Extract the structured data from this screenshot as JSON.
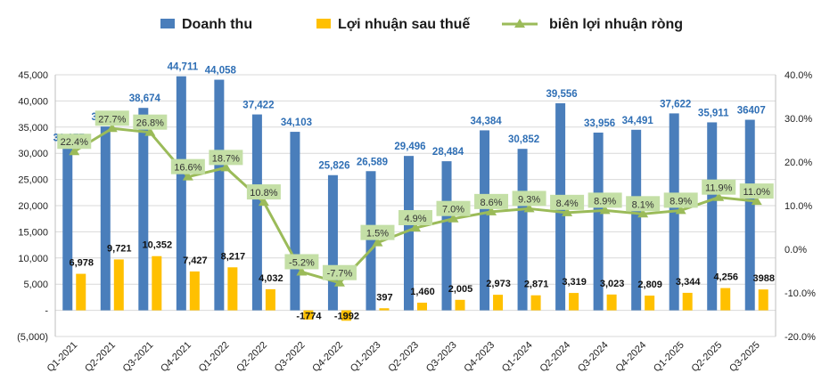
{
  "chart_data": {
    "type": "bar",
    "categories": [
      "Q1-2021",
      "Q2-2021",
      "Q3-2021",
      "Q4-2021",
      "Q1-2022",
      "Q2-2022",
      "Q3-2022",
      "Q4-2022",
      "Q1-2023",
      "Q2-2023",
      "Q3-2023",
      "Q4-2023",
      "Q1-2024",
      "Q2-2024",
      "Q3-2024",
      "Q4-2024",
      "Q1-2025",
      "Q2-2025",
      "Q3-2025"
    ],
    "series": [
      {
        "name": "Doanh thu",
        "type": "bar",
        "axis": "left",
        "color": "#4a7ebb",
        "values": [
          31177,
          35118,
          38674,
          44711,
          44058,
          37422,
          34103,
          25826,
          26589,
          29496,
          28484,
          34384,
          30852,
          39556,
          33956,
          34491,
          37622,
          35911,
          36407
        ],
        "labels": [
          "31,177",
          "35,118",
          "38,674",
          "44,711",
          "44,058",
          "37,422",
          "34,103",
          "25,826",
          "26,589",
          "29,496",
          "28,484",
          "34,384",
          "30,852",
          "39,556",
          "33,956",
          "34,491",
          "37,622",
          "35,911",
          "36407"
        ]
      },
      {
        "name": "Lợi nhuận sau thuế",
        "type": "bar",
        "axis": "left",
        "color": "#ffc000",
        "values": [
          6978,
          9721,
          10352,
          7427,
          8217,
          4032,
          -1774,
          -1992,
          397,
          1460,
          2005,
          2973,
          2871,
          3319,
          3023,
          2809,
          3344,
          4256,
          3988
        ],
        "labels": [
          "6,978",
          "9,721",
          "10,352",
          "7,427",
          "8,217",
          "4,032",
          "-1774",
          "-1992",
          "397",
          "1,460",
          "2,005",
          "2,973",
          "2,871",
          "3,319",
          "3,023",
          "2,809",
          "3,344",
          "4,256",
          "3988"
        ]
      },
      {
        "name": "biên lợi nhuận ròng",
        "type": "line",
        "axis": "right",
        "color": "#9bbb59",
        "values": [
          22.4,
          27.7,
          26.8,
          16.6,
          18.7,
          10.8,
          -5.2,
          -7.7,
          1.5,
          4.9,
          7.0,
          8.6,
          9.3,
          8.4,
          8.9,
          8.1,
          8.9,
          11.9,
          11.0
        ],
        "labels": [
          "22.4%",
          "27.7%",
          "26.8%",
          "16.6%",
          "18.7%",
          "10.8%",
          "-5.2%",
          "-7.7%",
          "1.5%",
          "4.9%",
          "7.0%",
          "8.6%",
          "9.3%",
          "8.4%",
          "8.9%",
          "8.1%",
          "8.9%",
          "11.9%",
          "11.0%"
        ],
        "label_bg": "#c4dfa6"
      }
    ],
    "left_axis": {
      "ylim": [
        -5000,
        45000
      ],
      "ticks": [
        -5000,
        0,
        5000,
        10000,
        15000,
        20000,
        25000,
        30000,
        35000,
        40000,
        45000
      ],
      "tick_labels": [
        "(5,000)",
        "-",
        "5,000",
        "10,000",
        "15,000",
        "20,000",
        "25,000",
        "30,000",
        "35,000",
        "40,000",
        "45,000"
      ]
    },
    "right_axis": {
      "ylim": [
        -20,
        40
      ],
      "ticks": [
        -20,
        -10,
        0,
        10,
        20,
        30,
        40
      ],
      "tick_labels": [
        "-20.0%",
        "-10.0%",
        "0.0%",
        "10.0%",
        "20.0%",
        "30.0%",
        "40.0%"
      ]
    },
    "grid": true,
    "grid_color": "#d9d9d9",
    "legend_position": "top"
  }
}
